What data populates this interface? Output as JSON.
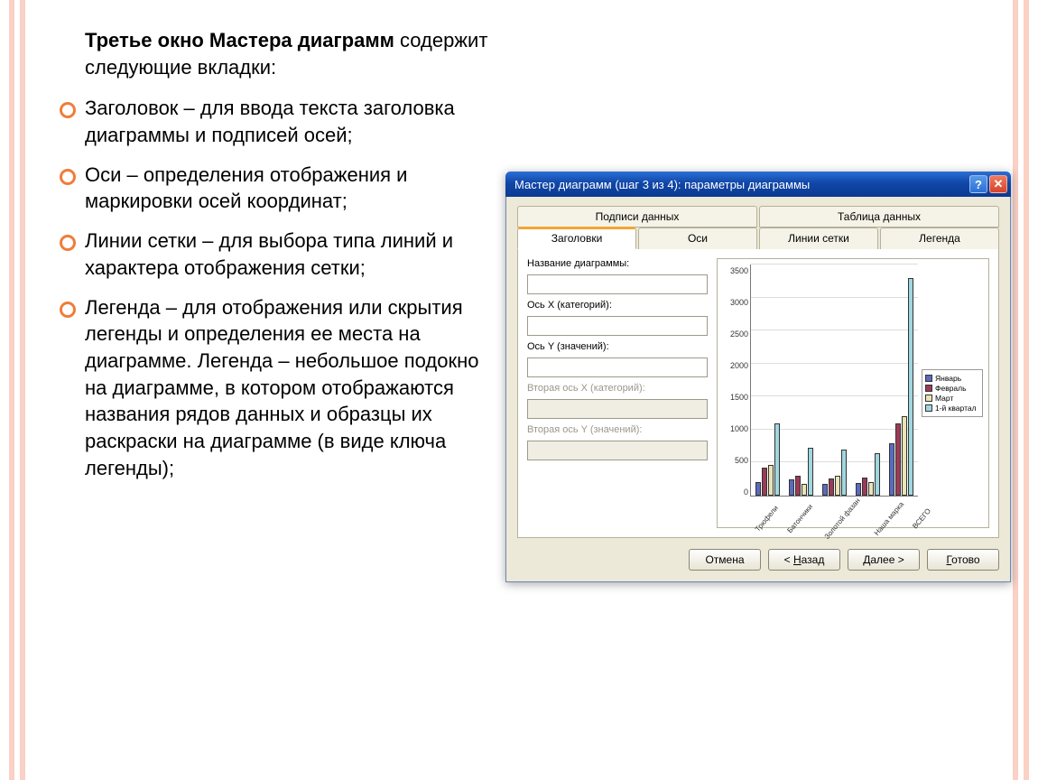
{
  "slide": {
    "intro_bold": "Третье окно Мастера диаграмм",
    "intro_rest": " содержит следующие вкладки:",
    "bullets": [
      "Заголовок – для ввода текста заголовка диаграммы и подписей осей;",
      "Оси – определения отображения и маркировки осей координат;",
      "Линии сетки – для выбора типа линий и характера отображения сетки;",
      "Легенда – для отображения или скрытия легенды и определения ее места на диаграмме. Легенда – небольшое подокно на диаграмме, в котором отображаются названия рядов данных и образцы их раскраски на диаграмме (в виде ключа легенды);"
    ]
  },
  "dialog": {
    "title": "Мастер диаграмм (шаг 3 из 4): параметры диаграммы",
    "titlebar_bg_from": "#2a6fd6",
    "titlebar_bg_to": "#0a3a92",
    "help_label": "?",
    "close_label": "✕",
    "tabs_top": [
      "Подписи данных",
      "Таблица данных"
    ],
    "tabs_bottom": [
      "Заголовки",
      "Оси",
      "Линии сетки",
      "Легенда"
    ],
    "active_tab": "Заголовки",
    "fields": {
      "chart_title_label": "Название диаграммы:",
      "chart_title_value": "",
      "x_label": "Ось X (категорий):",
      "x_value": "",
      "y_label": "Ось Y (значений):",
      "y_value": "",
      "x2_label": "Вторая ось X (категорий):",
      "x2_value": "",
      "y2_label": "Вторая ось Y (значений):",
      "y2_value": ""
    },
    "buttons": {
      "cancel": "Отмена",
      "back": "< Назад",
      "next": "Далее >",
      "finish": "Готово",
      "back_key": "Н",
      "next_key": "Д",
      "finish_key": "Г"
    }
  },
  "chart": {
    "type": "bar",
    "background_color": "#ffffff",
    "grid_color": "#dddddd",
    "axis_color": "#777777",
    "y_ticks": [
      3500,
      3000,
      2500,
      2000,
      1500,
      1000,
      500,
      0
    ],
    "ymax": 3500,
    "categories": [
      "Трюфели",
      "Батончики",
      "Золотой фазан",
      "Наша марка",
      "ВСЕГО"
    ],
    "series": [
      {
        "name": "Январь",
        "color": "#5a6bbf",
        "values": [
          200,
          250,
          180,
          190,
          800
        ]
      },
      {
        "name": "Февраль",
        "color": "#9c3b57",
        "values": [
          420,
          300,
          260,
          280,
          1100
        ]
      },
      {
        "name": "Март",
        "color": "#e8e4b4",
        "values": [
          470,
          180,
          300,
          200,
          1200
        ]
      },
      {
        "name": "1-й квартал",
        "color": "#9fd7e0",
        "values": [
          1100,
          720,
          700,
          640,
          3300
        ]
      }
    ],
    "label_fontsize": 8,
    "tick_fontsize": 9,
    "legend_fontsize": 8.5
  }
}
